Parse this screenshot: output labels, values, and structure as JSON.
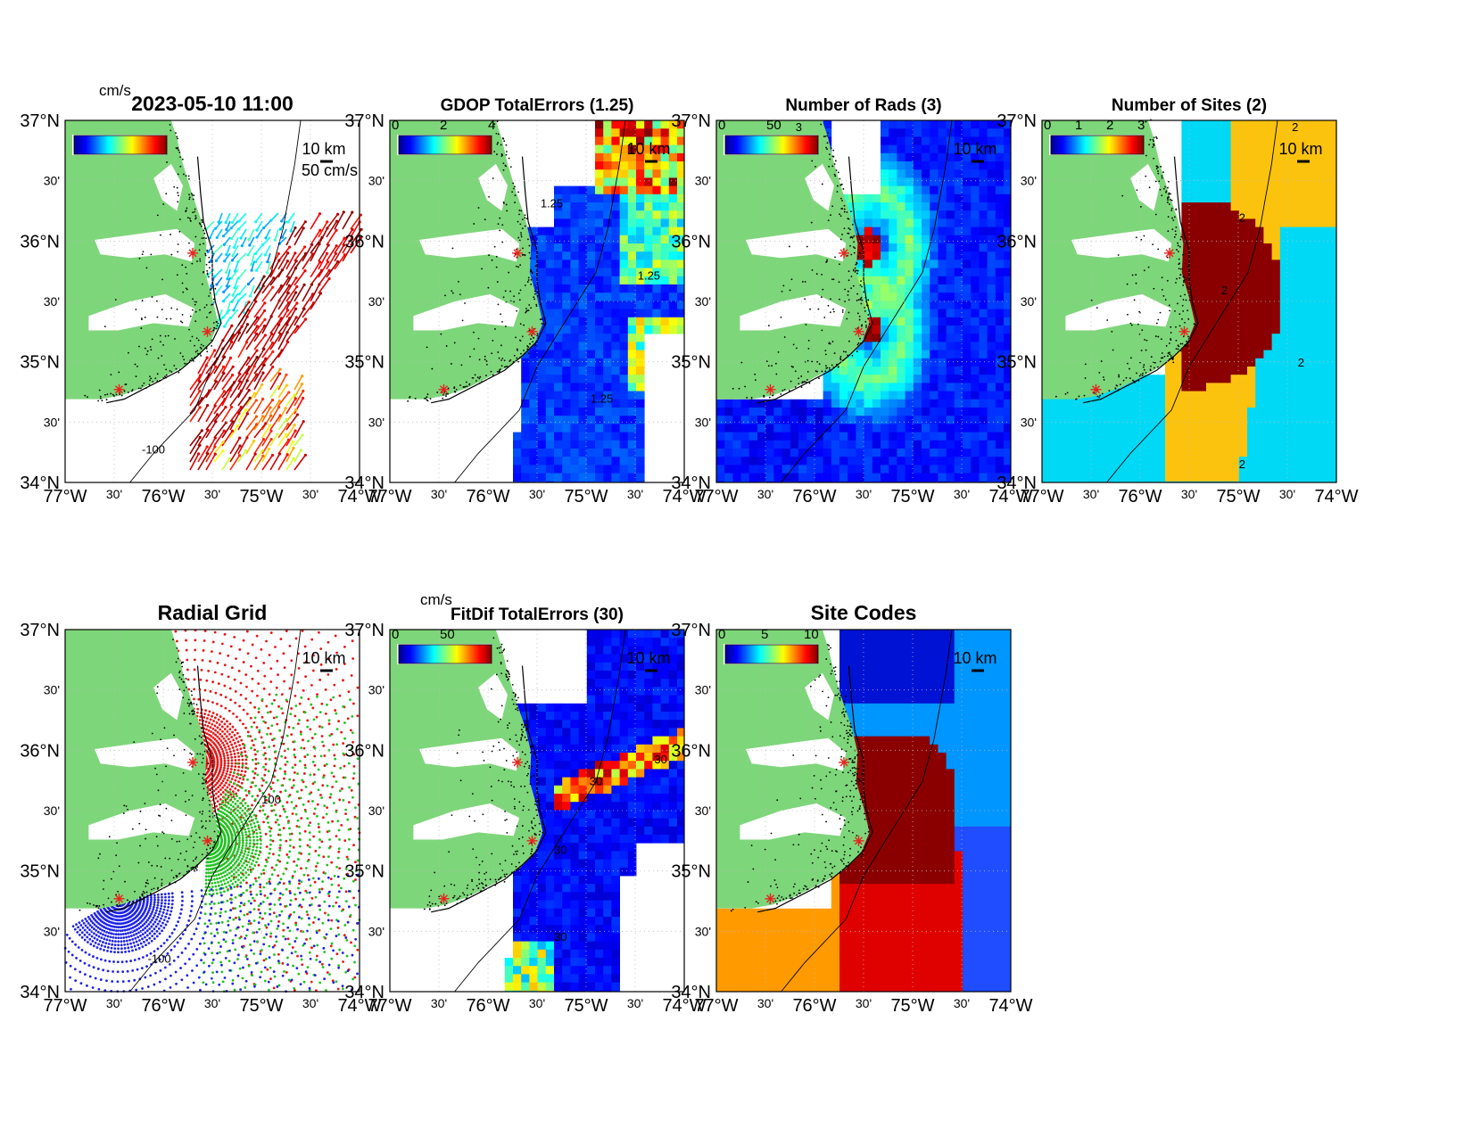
{
  "figure_timestamp": "2023-05-10 11:00",
  "colors": {
    "land": "#7ed67a",
    "coast": "#000000",
    "site_marker": "#e8231e",
    "frame": "#000000",
    "grid": "#bbbbbb"
  },
  "axes": {
    "lon_labels": [
      "77°W",
      "30'",
      "76°W",
      "30'",
      "75°W",
      "30'",
      "74°W"
    ],
    "lat_labels": [
      "37°N",
      "30'",
      "36°N",
      "30'",
      "35°N",
      "30'",
      "34°N"
    ],
    "lon_range": [
      -77,
      -74
    ],
    "lat_range": [
      34,
      37
    ]
  },
  "scale_bar_label": "10 km",
  "panels": [
    {
      "id": "currents",
      "title": "2023-05-10 11:00",
      "colorbar_unit": "cm/s",
      "colorbar_ticks": [],
      "vector_scale_label": "50 cm/s",
      "contour_labels": [
        "-100"
      ],
      "field": "current vectors"
    },
    {
      "id": "gdop",
      "title": "GDOP TotalErrors (1.25)",
      "colorbar_unit": "",
      "colorbar_ticks": [
        "0",
        "2",
        "4"
      ],
      "contour_labels": [
        "1.25",
        "1.25",
        "1.25"
      ],
      "field": "gdop"
    },
    {
      "id": "nrads",
      "title": "Number of Rads (3)",
      "colorbar_unit": "",
      "colorbar_ticks": [
        "0",
        "50"
      ],
      "contour_labels": [
        "3"
      ],
      "field": "rads"
    },
    {
      "id": "nsites",
      "title": "Number of Sites (2)",
      "colorbar_unit": "",
      "colorbar_ticks": [
        "0",
        "1",
        "2",
        "3"
      ],
      "contour_labels": [
        "2",
        "2",
        "2",
        "2",
        "2"
      ],
      "field": "sites"
    },
    {
      "id": "radgrid",
      "title": "Radial Grid",
      "colorbar_unit": "",
      "colorbar_ticks": [],
      "contour_labels": [
        "100",
        "-100"
      ],
      "field": "radial grid"
    },
    {
      "id": "fitdif",
      "title": "FitDif TotalErrors (30)",
      "colorbar_unit": "cm/s",
      "colorbar_ticks": [
        "0",
        "50"
      ],
      "contour_labels": [
        "30",
        "30",
        "30",
        "30"
      ],
      "field": "fitdif"
    },
    {
      "id": "sitecodes",
      "title": "Site Codes",
      "colorbar_unit": "",
      "colorbar_ticks": [
        "0",
        "5",
        "10"
      ],
      "contour_labels": [],
      "field": "codes"
    }
  ],
  "radar_sites": [
    {
      "lon": -75.7,
      "lat": 35.9
    },
    {
      "lon": -75.55,
      "lat": 35.25
    },
    {
      "lon": -76.45,
      "lat": 34.77
    }
  ]
}
